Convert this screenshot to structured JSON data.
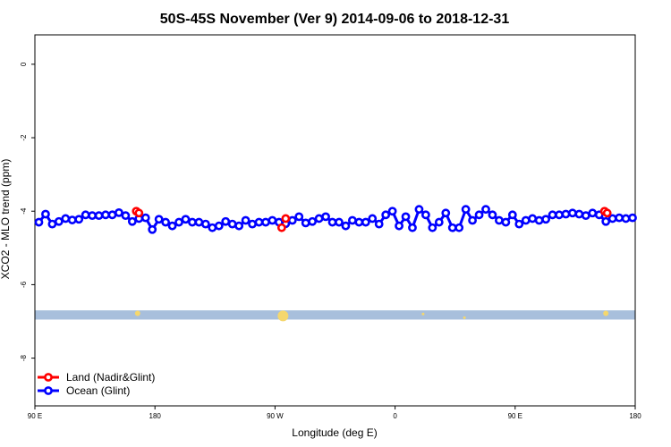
{
  "chart_data": {
    "type": "line",
    "title": "50S-45S November (Ver 9)   2014-09-06 to 2018-12-31",
    "xlabel": "Longitude (deg E)",
    "ylabel": "XCO2 - MLO trend (ppm)",
    "x_ticks": [
      {
        "value": 90,
        "label": "90 E"
      },
      {
        "value": 180,
        "label": "180"
      },
      {
        "value": 270,
        "label": "90 W"
      },
      {
        "value": 360,
        "label": "0"
      },
      {
        "value": 450,
        "label": "90 E"
      },
      {
        "value": 540,
        "label": "180"
      }
    ],
    "xlim": [
      90,
      540
    ],
    "y_ticks": [
      0,
      -2,
      -4,
      -6,
      -8
    ],
    "ylim": [
      -9.3,
      0.8
    ],
    "legend": {
      "position": "bottom-left",
      "entries": [
        {
          "label": "Land (Nadir&Glint)",
          "color": "#ff0000"
        },
        {
          "label": "Ocean (Glint)",
          "color": "#0000ff"
        }
      ]
    },
    "series": [
      {
        "name": "Ocean (Glint)",
        "color": "#0000ff",
        "x": [
          93,
          98,
          103,
          108,
          113,
          118,
          123,
          128,
          133,
          138,
          143,
          148,
          153,
          158,
          163,
          168,
          173,
          178,
          183,
          188,
          193,
          198,
          203,
          208,
          213,
          218,
          223,
          228,
          233,
          238,
          243,
          248,
          253,
          258,
          263,
          268,
          273,
          278,
          283,
          288,
          293,
          298,
          303,
          308,
          313,
          318,
          323,
          328,
          333,
          338,
          343,
          348,
          353,
          358,
          363,
          368,
          373,
          378,
          383,
          388,
          393,
          398,
          403,
          408,
          413,
          418,
          423,
          428,
          433,
          438,
          443,
          448,
          453,
          458,
          463,
          468,
          473,
          478,
          483,
          488,
          493,
          498,
          503,
          508,
          513,
          518,
          523,
          528,
          533,
          538
        ],
        "y": [
          -4.3,
          -4.08,
          -4.35,
          -4.28,
          -4.2,
          -4.24,
          -4.22,
          -4.1,
          -4.12,
          -4.12,
          -4.1,
          -4.1,
          -4.04,
          -4.12,
          -4.28,
          -4.2,
          -4.18,
          -4.5,
          -4.22,
          -4.3,
          -4.4,
          -4.3,
          -4.22,
          -4.3,
          -4.3,
          -4.35,
          -4.45,
          -4.4,
          -4.28,
          -4.35,
          -4.4,
          -4.25,
          -4.35,
          -4.3,
          -4.3,
          -4.25,
          -4.3,
          -4.34,
          -4.25,
          -4.15,
          -4.32,
          -4.28,
          -4.2,
          -4.15,
          -4.3,
          -4.3,
          -4.4,
          -4.25,
          -4.3,
          -4.3,
          -4.2,
          -4.35,
          -4.1,
          -4.0,
          -4.4,
          -4.15,
          -4.45,
          -3.95,
          -4.1,
          -4.45,
          -4.3,
          -4.05,
          -4.45,
          -4.45,
          -3.95,
          -4.25,
          -4.1,
          -3.95,
          -4.1,
          -4.25,
          -4.3,
          -4.1,
          -4.35,
          -4.25,
          -4.2,
          -4.25,
          -4.22,
          -4.1,
          -4.1,
          -4.08,
          -4.05,
          -4.08,
          -4.12,
          -4.05,
          -4.1,
          -4.28,
          -4.2,
          -4.18,
          -4.2,
          -4.18
        ]
      },
      {
        "name": "Land (Nadir&Glint)",
        "color": "#ff0000",
        "x": [
          166,
          168,
          275,
          278,
          517,
          519
        ],
        "y": [
          -4.0,
          -4.05,
          -4.45,
          -4.2,
          -4.0,
          -4.05
        ]
      }
    ],
    "band": {
      "ylim": [
        -6.95,
        -6.7
      ],
      "color": "#a8bfdc"
    },
    "yellow_marks": [
      {
        "x": 167,
        "y": -6.78,
        "size": "small"
      },
      {
        "x": 276,
        "y": -6.85,
        "size": "large"
      },
      {
        "x": 518,
        "y": -6.78,
        "size": "small"
      },
      {
        "x": 381,
        "y": -6.8,
        "size": "tiny"
      },
      {
        "x": 412,
        "y": -6.9,
        "size": "tiny"
      }
    ]
  }
}
